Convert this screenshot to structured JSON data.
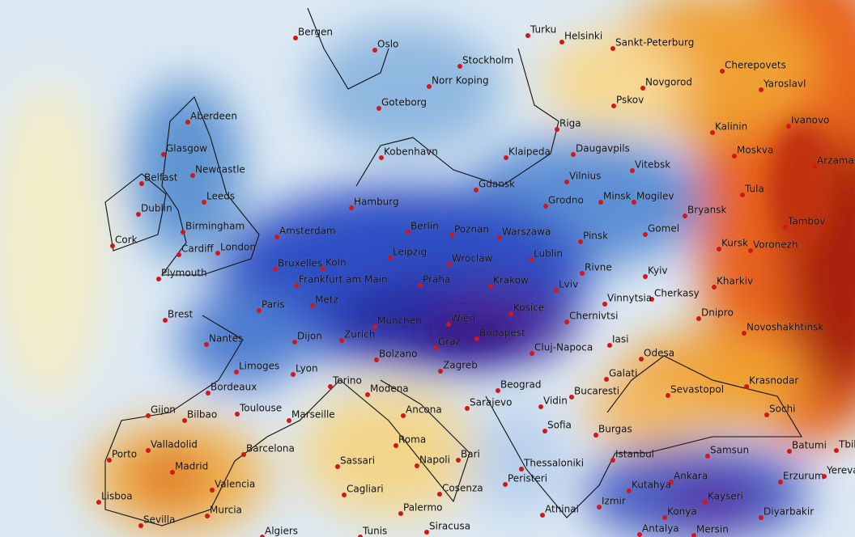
{
  "cities": [
    "Bergen",
    "Oslo",
    "Stockholm",
    "Turku",
    "Helsinki",
    "Sankt-Peterburg",
    "Cherepovets",
    "Norr Koping",
    "Novgorod",
    "Goteborg",
    "Pskov",
    "Yaroslavl",
    "Ivanovo",
    "Aberdeen",
    "Riga",
    "Kalinin",
    "Glasgow",
    "Klaipeda",
    "Daugavpils",
    "Moskva",
    "Arzamas",
    "Newcastle",
    "Kobenhavn",
    "Vilnius",
    "Vitebsk",
    "Belfast",
    "Gdansk",
    "Leeds",
    "Dublin",
    "Grodno",
    "Minsk",
    "Mogilev",
    "Tula",
    "Hamburg",
    "Bryansk",
    "Tambov",
    "Birmingham",
    "Berlin",
    "Poznan",
    "Warszawa",
    "Cork",
    "Amsterdam",
    "Gomel",
    "Pinsk",
    "Kursk",
    "Voronezh",
    "London",
    "Cardiff",
    "Leipzig",
    "Wroclaw",
    "Lublin",
    "Bruxelles",
    "Koln",
    "Rivne",
    "Kyiv",
    "Plymouth",
    "Frankfurt am Main",
    "Praha",
    "Krakow",
    "Lviv",
    "Cherkasy",
    "Kharkiv",
    "Paris",
    "Metz",
    "Vinnytsia",
    "Kosice",
    "Brest",
    "Munchen",
    "Wien",
    "Chernivtsi",
    "Dnipro",
    "Novoshakhtinsk",
    "Budapest",
    "Nantes",
    "Dijon",
    "Zurich",
    "Graz",
    "Iasi",
    "Cluj-Napoca",
    "Bolzano",
    "Odesa",
    "Limoges",
    "Lyon",
    "Zagreb",
    "Galati",
    "Krasnodar",
    "Bordeaux",
    "Torino",
    "Modena",
    "Beograd",
    "Sevastopol",
    "Bucaresti",
    "Gijon",
    "Bilbao",
    "Toulouse",
    "Marseille",
    "Ancona",
    "Sarajevo",
    "Vidin",
    "Sochi",
    "Sofia",
    "Burgas",
    "Valladolid",
    "Barcelona",
    "Roma",
    "Bari",
    "Istanbul",
    "Samsun",
    "Batumi",
    "Tbilisi",
    "Porto",
    "Madrid",
    "Sassari",
    "Napoli",
    "Thessaloniki",
    "Erzurum",
    "Yerevan",
    "Valencia",
    "Ankara",
    "Cagliari",
    "Cosenza",
    "Kutahya",
    "Lisboa",
    "Murcia",
    "Palermo",
    "Kayseri",
    "Diyarbakir",
    "Sevilla",
    "Algiers",
    "Tunis",
    "Siracusa",
    "Konya",
    "Izmir",
    "Peristeri",
    "Athinai",
    "Antalya",
    "Mersin"
  ]
}
